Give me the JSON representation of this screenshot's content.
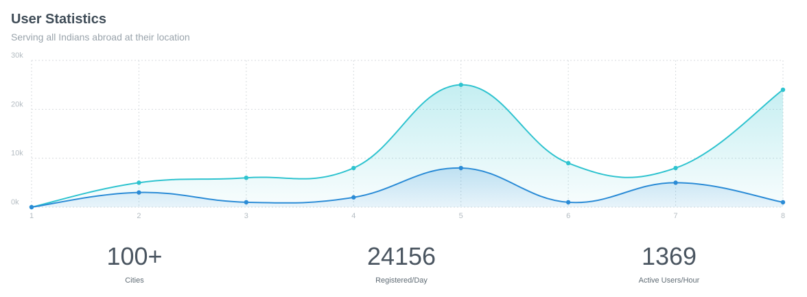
{
  "header": {
    "title": "User Statistics",
    "subtitle": "Serving all Indians abroad at their location"
  },
  "chart_data": {
    "type": "area",
    "x": [
      1,
      2,
      3,
      4,
      5,
      6,
      7,
      8
    ],
    "x_tick_labels": [
      "1",
      "2",
      "3",
      "4",
      "5",
      "6",
      "7",
      "8"
    ],
    "y_tick_labels": [
      "0k",
      "10k",
      "20k",
      "30k"
    ],
    "y_ticks": [
      0,
      10000,
      20000,
      30000
    ],
    "ylim": [
      0,
      30000
    ],
    "grid": true,
    "series": [
      {
        "values": [
          0,
          5000,
          6000,
          8000,
          25000,
          9000,
          8000,
          24000
        ],
        "color": "#2ec3cf"
      },
      {
        "values": [
          0,
          3000,
          1000,
          2000,
          8000,
          1000,
          5000,
          1000
        ],
        "color": "#2a8bd6"
      }
    ]
  },
  "stats": [
    {
      "value": "100+",
      "label": "Cities"
    },
    {
      "value": "24156",
      "label": "Registered/Day"
    },
    {
      "value": "1369",
      "label": "Active Users/Hour"
    }
  ]
}
